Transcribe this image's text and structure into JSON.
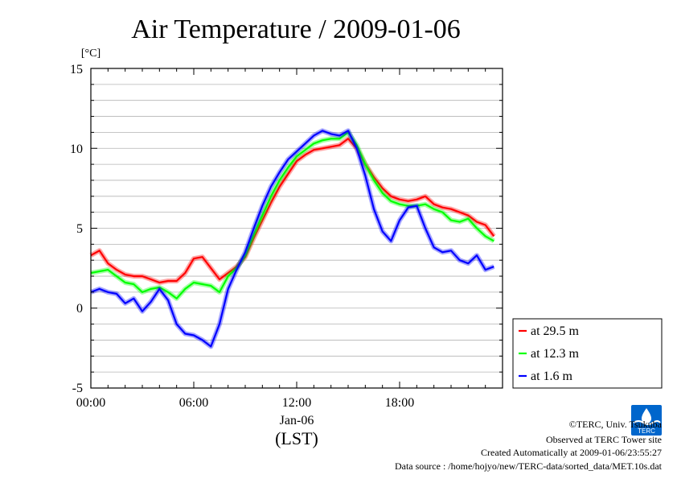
{
  "chart_data": {
    "type": "line",
    "title": "Air Temperature / 2009-01-06",
    "ylabel": "[°C]",
    "xlabel": "(LST)",
    "x_sublabel": "Jan-06",
    "ylim": [
      -5,
      15
    ],
    "xlim_hours": [
      0,
      24
    ],
    "grid": "horizontal lines every 1 °C",
    "legend_placement": "right, bottom",
    "y_ticks": [
      "15",
      "10",
      "5",
      "0",
      "-5"
    ],
    "y_tick_values": [
      15,
      10,
      5,
      0,
      -5
    ],
    "x_ticks": [
      "00:00",
      "06:00",
      "12:00",
      "18:00"
    ],
    "x_tick_values": [
      0,
      6,
      12,
      18
    ],
    "series": [
      {
        "name": "at 29.5 m",
        "color": "#ff0000",
        "x": [
          0,
          0.5,
          1,
          1.5,
          2,
          2.5,
          3,
          3.5,
          4,
          4.5,
          5,
          5.5,
          6,
          6.5,
          7,
          7.5,
          8,
          8.5,
          9,
          9.5,
          10,
          10.5,
          11,
          11.5,
          12,
          12.5,
          13,
          13.5,
          14,
          14.5,
          15,
          15.5,
          16,
          16.5,
          17,
          17.5,
          18,
          18.5,
          19,
          19.5,
          20,
          20.5,
          21,
          21.5,
          22,
          22.5,
          23,
          23.5
        ],
        "y": [
          3.3,
          3.6,
          2.8,
          2.4,
          2.1,
          2.0,
          2.0,
          1.8,
          1.6,
          1.7,
          1.7,
          2.2,
          3.1,
          3.2,
          2.5,
          1.8,
          2.2,
          2.6,
          3.2,
          4.4,
          5.5,
          6.6,
          7.6,
          8.4,
          9.2,
          9.6,
          9.9,
          10.0,
          10.1,
          10.2,
          10.6,
          10.0,
          9.0,
          8.2,
          7.5,
          7.0,
          6.8,
          6.7,
          6.8,
          7.0,
          6.5,
          6.3,
          6.2,
          6.0,
          5.8,
          5.4,
          5.2,
          4.5
        ]
      },
      {
        "name": "at 12.3 m",
        "color": "#00ff00",
        "x": [
          0,
          0.5,
          1,
          1.5,
          2,
          2.5,
          3,
          3.5,
          4,
          4.5,
          5,
          5.5,
          6,
          6.5,
          7,
          7.5,
          8,
          8.5,
          9,
          9.5,
          10,
          10.5,
          11,
          11.5,
          12,
          12.5,
          13,
          13.5,
          14,
          14.5,
          15,
          15.5,
          16,
          16.5,
          17,
          17.5,
          18,
          18.5,
          19,
          19.5,
          20,
          20.5,
          21,
          21.5,
          22,
          22.5,
          23,
          23.5
        ],
        "y": [
          2.2,
          2.3,
          2.4,
          2.0,
          1.6,
          1.5,
          1.0,
          1.2,
          1.3,
          1.0,
          0.6,
          1.2,
          1.6,
          1.5,
          1.4,
          1.0,
          2.0,
          2.5,
          3.3,
          4.6,
          5.8,
          7.0,
          8.0,
          8.8,
          9.5,
          9.9,
          10.3,
          10.5,
          10.6,
          10.6,
          11.0,
          10.2,
          9.0,
          8.0,
          7.2,
          6.7,
          6.5,
          6.4,
          6.4,
          6.5,
          6.2,
          6.0,
          5.5,
          5.4,
          5.6,
          5.0,
          4.5,
          4.2
        ]
      },
      {
        "name": "at 1.6 m",
        "color": "#0000ff",
        "x": [
          0,
          0.5,
          1,
          1.5,
          2,
          2.5,
          3,
          3.5,
          4,
          4.5,
          5,
          5.5,
          6,
          6.5,
          7,
          7.5,
          8,
          8.5,
          9,
          9.5,
          10,
          10.5,
          11,
          11.5,
          12,
          12.5,
          13,
          13.5,
          14,
          14.5,
          15,
          15.5,
          16,
          16.5,
          17,
          17.5,
          18,
          18.5,
          19,
          19.5,
          20,
          20.5,
          21,
          21.5,
          22,
          22.5,
          23,
          23.5
        ],
        "y": [
          1.0,
          1.2,
          1.0,
          0.9,
          0.3,
          0.6,
          -0.2,
          0.4,
          1.2,
          0.5,
          -1.0,
          -1.6,
          -1.7,
          -2.0,
          -2.4,
          -1.0,
          1.2,
          2.4,
          3.5,
          5.0,
          6.4,
          7.6,
          8.5,
          9.3,
          9.8,
          10.3,
          10.8,
          11.1,
          10.9,
          10.8,
          11.1,
          10.0,
          8.3,
          6.2,
          4.8,
          4.2,
          5.5,
          6.3,
          6.4,
          5.0,
          3.8,
          3.5,
          3.6,
          3.0,
          2.8,
          3.3,
          2.4,
          2.6
        ]
      }
    ]
  },
  "footer": {
    "copyright": "©TERC, Univ. Tsukuba",
    "site": "Observed at TERC Tower site",
    "created": "Created Automatically at 2009-01-06/23:55:27",
    "source": "Data source : /home/hojyo/new/TERC-data/sorted_data/MET.10s.dat"
  },
  "logo": {
    "text": "TERC",
    "color": "#0066cc"
  }
}
